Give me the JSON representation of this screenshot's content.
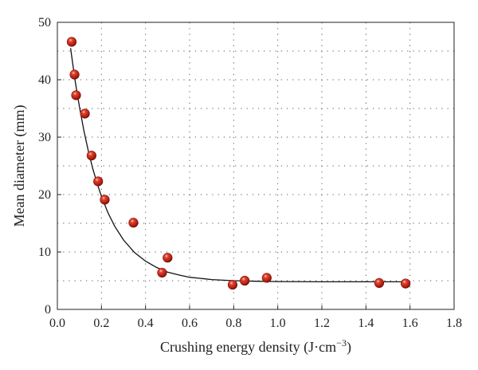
{
  "chart_data": {
    "type": "scatter",
    "title": "",
    "xlabel": "Crushing energy density (J·cm",
    "xlabel_sup": "−3",
    "xlabel_close": ")",
    "ylabel": "Mean diameter (mm)",
    "xlim": [
      0.0,
      1.8
    ],
    "ylim": [
      0,
      50
    ],
    "xticks": [
      0.0,
      0.2,
      0.4,
      0.6,
      0.8,
      1.0,
      1.2,
      1.4,
      1.6,
      1.8
    ],
    "yticks": [
      0,
      10,
      20,
      30,
      40,
      50
    ],
    "xtick_labels": [
      "0.0",
      "0.2",
      "0.4",
      "0.6",
      "0.8",
      "1.0",
      "1.2",
      "1.4",
      "1.6",
      "1.8"
    ],
    "ytick_labels": [
      "0",
      "10",
      "20",
      "30",
      "40",
      "50"
    ],
    "grid": true,
    "legend": "none",
    "marker_color": "#c0261b",
    "series": [
      {
        "kind": "points",
        "x": [
          0.065,
          0.078,
          0.085,
          0.125,
          0.155,
          0.185,
          0.215,
          0.345,
          0.475,
          0.5,
          0.795,
          0.85,
          0.95,
          1.46,
          1.58
        ],
        "y": [
          46.6,
          40.9,
          37.3,
          34.1,
          26.8,
          22.3,
          19.1,
          15.1,
          6.4,
          9.0,
          4.3,
          5.0,
          5.5,
          4.6,
          4.5
        ]
      },
      {
        "kind": "fit-curve",
        "x": [
          0.06,
          0.07,
          0.08,
          0.09,
          0.1,
          0.12,
          0.14,
          0.16,
          0.18,
          0.2,
          0.23,
          0.26,
          0.3,
          0.35,
          0.4,
          0.45,
          0.5,
          0.55,
          0.6,
          0.65,
          0.7,
          0.8,
          0.9,
          1.0,
          1.2,
          1.4,
          1.6
        ],
        "y": [
          45.5,
          42.7,
          40.0,
          37.6,
          35.3,
          31.2,
          27.7,
          24.6,
          22.0,
          19.7,
          16.8,
          14.5,
          12.1,
          9.9,
          8.4,
          7.3,
          6.5,
          6.0,
          5.6,
          5.4,
          5.2,
          5.0,
          4.9,
          4.85,
          4.8,
          4.8,
          4.8
        ]
      }
    ]
  }
}
